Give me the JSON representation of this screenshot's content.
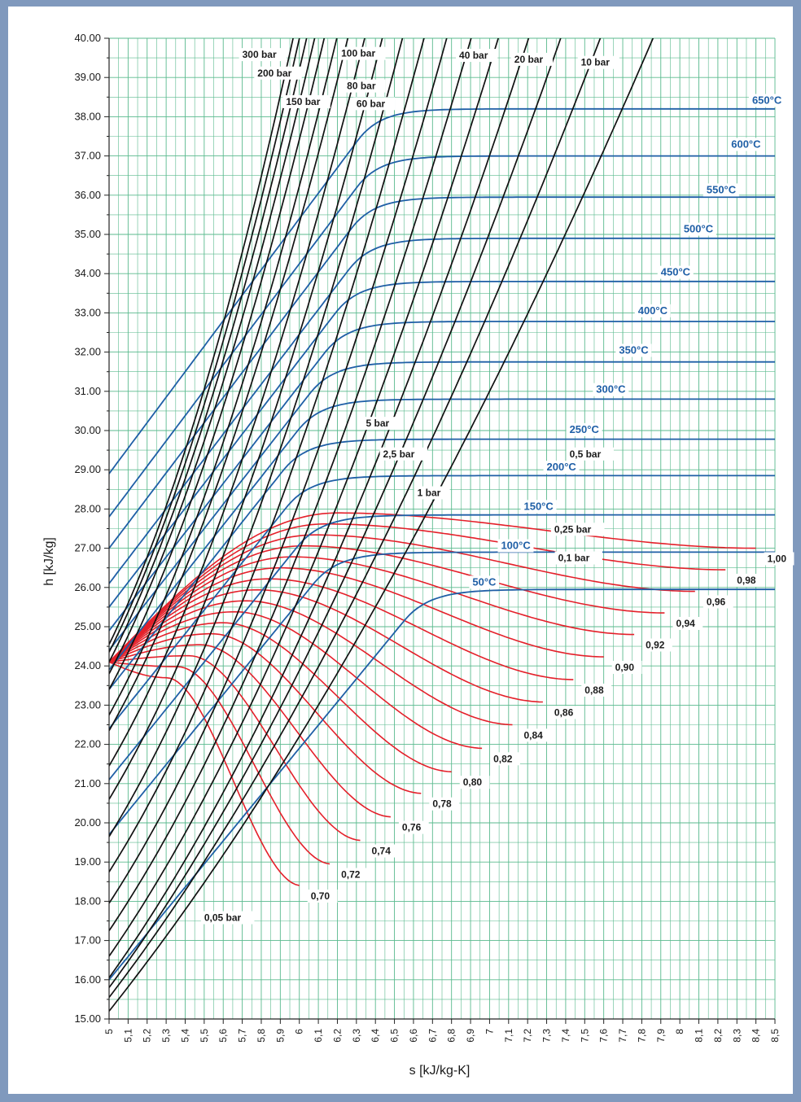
{
  "chart_data": {
    "type": "line",
    "title": "",
    "xlabel": "s [kJ/kg-K]",
    "ylabel": "h [kJ/kg]",
    "xlim": [
      5,
      8.5
    ],
    "ylim": [
      15,
      40
    ],
    "grid": true,
    "grid_color": "#5aba8e",
    "colors": {
      "isobar": "#111111",
      "isotherm": "#1f5fa6",
      "quality": "#e4202a"
    },
    "x_ticks": [
      "5",
      "5,1",
      "5,2",
      "5,3",
      "5,4",
      "5,5",
      "5,6",
      "5,7",
      "5,8",
      "5,9",
      "6",
      "6,1",
      "6,2",
      "6,3",
      "6,4",
      "6,5",
      "6,6",
      "6,7",
      "6,8",
      "6,9",
      "7",
      "7,1",
      "7,2",
      "7,3",
      "7,4",
      "7,5",
      "7,6",
      "7,7",
      "7,8",
      "7,9",
      "8",
      "8,1",
      "8,2",
      "8,3",
      "8,4",
      "8,5"
    ],
    "y_ticks": [
      "15.00",
      "16.00",
      "17.00",
      "18.00",
      "19.00",
      "20.00",
      "21.00",
      "22.00",
      "23.00",
      "24.00",
      "25.00",
      "26.00",
      "27.00",
      "28.00",
      "29.00",
      "30.00",
      "31.00",
      "32.00",
      "33.00",
      "34.00",
      "35.00",
      "36.00",
      "37.00",
      "38.00",
      "39.00",
      "40.00"
    ],
    "isobar_labels": [
      {
        "text": "300 bar",
        "s": 5.7,
        "h": 39.5
      },
      {
        "text": "200 bar",
        "s": 5.78,
        "h": 39.03
      },
      {
        "text": "150 bar",
        "s": 5.93,
        "h": 38.3
      },
      {
        "text": "100 bar",
        "s": 6.22,
        "h": 39.53
      },
      {
        "text": "80 bar",
        "s": 6.25,
        "h": 38.7
      },
      {
        "text": "60 bar",
        "s": 6.3,
        "h": 38.25
      },
      {
        "text": "40 bar",
        "s": 6.84,
        "h": 39.48
      },
      {
        "text": "20 bar",
        "s": 7.13,
        "h": 39.38
      },
      {
        "text": "10 bar",
        "s": 7.48,
        "h": 39.3
      },
      {
        "text": "5 bar",
        "s": 6.35,
        "h": 30.1
      },
      {
        "text": "2,5 bar",
        "s": 6.44,
        "h": 29.32
      },
      {
        "text": "1 bar",
        "s": 6.62,
        "h": 28.33
      },
      {
        "text": "0,5 bar",
        "s": 7.42,
        "h": 29.32
      },
      {
        "text": "0,25 bar",
        "s": 7.34,
        "h": 27.4
      },
      {
        "text": "0,1 bar",
        "s": 7.36,
        "h": 26.67
      },
      {
        "text": "0,05 bar",
        "s": 5.5,
        "h": 17.5
      }
    ],
    "isotherm_labels": [
      {
        "text": "650°C",
        "s": 8.38,
        "h": 38.33
      },
      {
        "text": "600°C",
        "s": 8.27,
        "h": 37.21
      },
      {
        "text": "550°C",
        "s": 8.14,
        "h": 36.05
      },
      {
        "text": "500°C",
        "s": 8.02,
        "h": 35.05
      },
      {
        "text": "450°C",
        "s": 7.9,
        "h": 33.95
      },
      {
        "text": "400°C",
        "s": 7.78,
        "h": 32.97
      },
      {
        "text": "350°C",
        "s": 7.68,
        "h": 31.96
      },
      {
        "text": "300°C",
        "s": 7.56,
        "h": 30.96
      },
      {
        "text": "250°C",
        "s": 7.42,
        "h": 29.94
      },
      {
        "text": "200°C",
        "s": 7.3,
        "h": 28.98
      },
      {
        "text": "150°C",
        "s": 7.18,
        "h": 27.98
      },
      {
        "text": "100°C",
        "s": 7.06,
        "h": 26.98
      },
      {
        "text": "50°C",
        "s": 6.91,
        "h": 26.05
      }
    ],
    "quality_labels": [
      {
        "text": "0,70",
        "s": 6.06,
        "h": 18.05
      },
      {
        "text": "0,72",
        "s": 6.22,
        "h": 18.6
      },
      {
        "text": "0,74",
        "s": 6.38,
        "h": 19.2
      },
      {
        "text": "0,76",
        "s": 6.54,
        "h": 19.8
      },
      {
        "text": "0,78",
        "s": 6.7,
        "h": 20.4
      },
      {
        "text": "0,80",
        "s": 6.86,
        "h": 20.95
      },
      {
        "text": "0,82",
        "s": 7.02,
        "h": 21.55
      },
      {
        "text": "0,84",
        "s": 7.18,
        "h": 22.15
      },
      {
        "text": "0,86",
        "s": 7.34,
        "h": 22.73
      },
      {
        "text": "0,88",
        "s": 7.5,
        "h": 23.3
      },
      {
        "text": "0,90",
        "s": 7.66,
        "h": 23.88
      },
      {
        "text": "0,92",
        "s": 7.82,
        "h": 24.45
      },
      {
        "text": "0,94",
        "s": 7.98,
        "h": 25.0
      },
      {
        "text": "0,96",
        "s": 8.14,
        "h": 25.55
      },
      {
        "text": "0,98",
        "s": 8.3,
        "h": 26.1
      },
      {
        "text": "1,00",
        "s": 8.46,
        "h": 26.65
      }
    ]
  }
}
